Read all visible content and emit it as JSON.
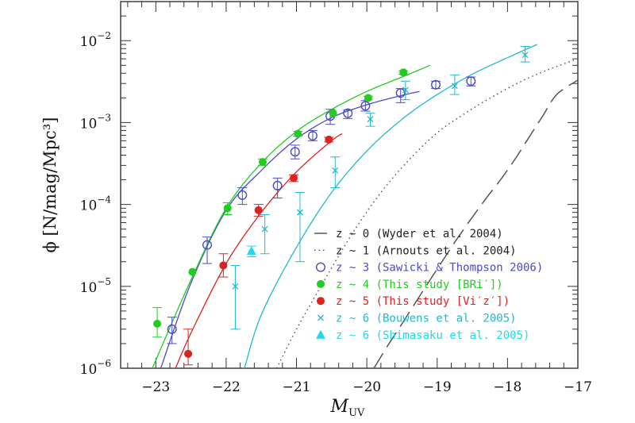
{
  "chart_data": {
    "type": "scatter",
    "xlabel": "M",
    "xlabel_sub": "UV",
    "ylabel": "ϕ [N/mag/Mpc³]",
    "xlim": [
      -23.5,
      -17
    ],
    "ylim": [
      1e-06,
      0.03
    ],
    "y_scale": "log",
    "grid": false,
    "legend_position": "bottom-right",
    "x_ticks": [
      -23,
      -22,
      -21,
      -20,
      -19,
      -18,
      -17
    ],
    "x_tick_labels": [
      "−23",
      "−22",
      "−21",
      "−20",
      "−19",
      "−18",
      "−17"
    ],
    "y_ticks": [
      {
        "value": 1e-06,
        "base": "10",
        "exp": "−6"
      },
      {
        "value": 1e-05,
        "base": "10",
        "exp": "−5"
      },
      {
        "value": 0.0001,
        "base": "10",
        "exp": "−4"
      },
      {
        "value": 0.001,
        "base": "10",
        "exp": "−3"
      },
      {
        "value": 0.01,
        "base": "10",
        "exp": "−2"
      }
    ],
    "series": [
      {
        "name": "z ~ 0 (Wyder et al. 2004)",
        "style": "long-dash",
        "color": "#555555",
        "marker": "none",
        "x": [
          -19.9,
          -19.7,
          -19.5,
          -19.3,
          -19.1,
          -18.9,
          -18.7,
          -18.5,
          -18.3,
          -18.1,
          -17.9,
          -17.7,
          -17.5,
          -17.3,
          -17.0
        ],
        "y": [
          1e-06,
          1.9e-06,
          3.5e-06,
          6.5e-06,
          1.2e-05,
          2.2e-05,
          4e-05,
          7e-05,
          0.00012,
          0.0002,
          0.00035,
          0.00065,
          0.0012,
          0.0022,
          0.0033
        ]
      },
      {
        "name": "z ~ 1 (Arnouts et al. 2004)",
        "style": "dotted",
        "color": "#555555",
        "marker": "none",
        "x": [
          -21.28,
          -21.0,
          -20.6,
          -20.2,
          -19.8,
          -19.4,
          -19.0,
          -18.6,
          -18.2,
          -17.8,
          -17.4,
          -17.0
        ],
        "y": [
          1e-06,
          3e-06,
          1.2e-05,
          4.5e-05,
          0.00014,
          0.00035,
          0.00075,
          0.0013,
          0.0021,
          0.0032,
          0.0045,
          0.006
        ]
      },
      {
        "name": "z ~ 3 (Sawicki & Thompson 2006)",
        "style": "solid",
        "color": "#4a4ac8",
        "marker": "open-circle",
        "x": [
          -22.77,
          -22.27,
          -21.77,
          -21.27,
          -21.02,
          -20.77,
          -20.52,
          -20.27,
          -20.02,
          -19.52,
          -19.02,
          -18.52
        ],
        "y": [
          3e-06,
          3.2e-05,
          0.00013,
          0.00017,
          0.00044,
          0.00069,
          0.0012,
          0.0013,
          0.0016,
          0.0023,
          0.0029,
          0.0032
        ],
        "err": [
          [
            2e-06,
            4.2e-06
          ],
          [
            1.9e-05,
            4e-05
          ],
          [
            0.0001,
            0.00016
          ],
          [
            0.00012,
            0.00021
          ],
          [
            0.00036,
            0.00053
          ],
          [
            0.0006,
            0.0008
          ],
          [
            0.00095,
            0.00145
          ],
          [
            0.00112,
            0.00142
          ],
          [
            0.00138,
            0.00185
          ],
          [
            0.00175,
            0.0026
          ],
          [
            0.0026,
            0.0032
          ],
          [
            0.0028,
            0.0036
          ]
        ],
        "fit_x": [
          -22.93,
          -22.5,
          -22.0,
          -21.5,
          -21.0,
          -20.5,
          -20.0,
          -19.5,
          -19.25
        ],
        "fit_y": [
          1e-06,
          1.1e-05,
          8.5e-05,
          0.00026,
          0.00063,
          0.00115,
          0.00165,
          0.00215,
          0.0024
        ]
      },
      {
        "name": "z ~ 4 (This study [BRi′])",
        "style": "solid",
        "color": "#22cc22",
        "marker": "filled-circle",
        "x": [
          -22.98,
          -22.48,
          -21.98,
          -21.48,
          -20.98,
          -20.48,
          -19.98,
          -19.48
        ],
        "y": [
          3.5e-06,
          1.5e-05,
          9e-05,
          0.00033,
          0.00073,
          0.0013,
          0.002,
          0.0041
        ],
        "err": [
          [
            2.4e-06,
            5.5e-06
          ],
          null,
          [
            7.5e-05,
            0.000105
          ],
          [
            0.0003,
            0.00036
          ],
          [
            0.00068,
            0.00078
          ],
          null,
          [
            0.0019,
            0.0021
          ],
          [
            0.0039,
            0.0043
          ]
        ],
        "fit_x": [
          -23.05,
          -22.5,
          -22.0,
          -21.5,
          -21.0,
          -20.5,
          -20.0,
          -19.5,
          -19.1
        ],
        "fit_y": [
          1e-06,
          1.2e-05,
          9e-05,
          0.00032,
          0.00078,
          0.00145,
          0.0024,
          0.0036,
          0.005
        ]
      },
      {
        "name": "z ~ 5 (This study [Vi′z′])",
        "style": "solid",
        "color": "#dd2222",
        "marker": "filled-circle",
        "x": [
          -22.54,
          -22.04,
          -21.54,
          -21.04,
          -20.54
        ],
        "y": [
          1.5e-06,
          1.8e-05,
          8.5e-05,
          0.00021,
          0.00062
        ],
        "err": [
          [
            1.1e-06,
            3e-06
          ],
          [
            1.3e-05,
            2.5e-05
          ],
          [
            7.2e-05,
            0.0001
          ],
          [
            0.00019,
            0.00023
          ],
          [
            0.00058,
            0.00066
          ]
        ],
        "fit_x": [
          -22.72,
          -22.5,
          -22.0,
          -21.5,
          -21.0,
          -20.5,
          -20.35
        ],
        "fit_y": [
          1e-06,
          2.7e-06,
          1.9e-05,
          8e-05,
          0.00025,
          0.0006,
          0.00073
        ]
      },
      {
        "name": "z ~ 6 (Bouwens et al. 2005)",
        "style": "solid",
        "color": "#22b8d0",
        "marker": "cross",
        "x": [
          -21.87,
          -21.45,
          -20.95,
          -20.45,
          -19.95,
          -19.45,
          -18.75,
          -17.75
        ],
        "y": [
          1e-05,
          5e-05,
          8e-05,
          0.00026,
          0.0011,
          0.0025,
          0.0028,
          0.0067
        ],
        "err": [
          [
            3e-06,
            1.8e-05
          ],
          [
            2.5e-05,
            7.5e-05
          ],
          [
            2e-05,
            0.00014
          ],
          [
            0.00016,
            0.00038
          ],
          [
            0.0009,
            0.0013
          ],
          [
            0.0019,
            0.0032
          ],
          [
            0.0022,
            0.0038
          ],
          [
            0.0055,
            0.0085
          ]
        ],
        "fit_x": [
          -21.74,
          -21.5,
          -21.0,
          -20.5,
          -20.0,
          -19.5,
          -19.0,
          -18.5,
          -18.0,
          -17.58
        ],
        "fit_y": [
          1e-06,
          4.5e-06,
          3e-05,
          0.00014,
          0.00045,
          0.0011,
          0.0022,
          0.0039,
          0.0062,
          0.009
        ]
      },
      {
        "name": "z ~ 6 (Shimasaku et al. 2005)",
        "style": "none",
        "color": "#22d8ee",
        "marker": "filled-triangle",
        "x": [
          -21.64
        ],
        "y": [
          2.7e-05
        ],
        "err": [
          [
            2.3e-05,
            3.1e-05
          ]
        ]
      }
    ]
  }
}
